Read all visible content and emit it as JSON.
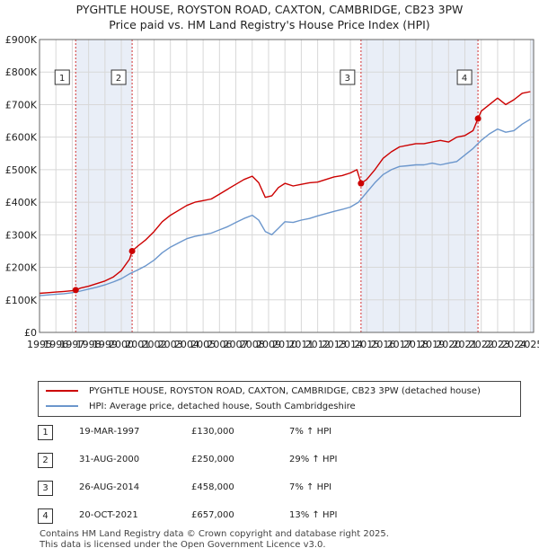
{
  "title_line1": "PYGHTLE HOUSE, ROYSTON ROAD, CAXTON, CAMBRIDGE, CB23 3PW",
  "title_line2": "Price paid vs. HM Land Registry's House Price Index (HPI)",
  "colors": {
    "property": "#cc0000",
    "hpi": "#6b96cc",
    "marker_line": "#cc0000",
    "shade": "#e9eef7"
  },
  "chart_data": {
    "type": "line",
    "xlim": [
      1995,
      2025.2
    ],
    "ylim": [
      0,
      900000
    ],
    "y_ticks": [
      {
        "value": 0,
        "label": "£0"
      },
      {
        "value": 100000,
        "label": "£100K"
      },
      {
        "value": 200000,
        "label": "£200K"
      },
      {
        "value": 300000,
        "label": "£300K"
      },
      {
        "value": 400000,
        "label": "£400K"
      },
      {
        "value": 500000,
        "label": "£500K"
      },
      {
        "value": 600000,
        "label": "£600K"
      },
      {
        "value": 700000,
        "label": "£700K"
      },
      {
        "value": 800000,
        "label": "£800K"
      },
      {
        "value": 900000,
        "label": "£900K"
      }
    ],
    "x_ticks": [
      "1995",
      "1996",
      "1997",
      "1998",
      "1999",
      "2000",
      "2001",
      "2002",
      "2003",
      "2004",
      "2005",
      "2006",
      "2007",
      "2008",
      "2009",
      "2010",
      "2011",
      "2012",
      "2013",
      "2014",
      "2015",
      "2016",
      "2017",
      "2018",
      "2019",
      "2020",
      "2021",
      "2022",
      "2023",
      "2024",
      "2025"
    ],
    "grid": true,
    "series": [
      {
        "name": "PYGHTLE HOUSE, ROYSTON ROAD, CAXTON, CAMBRIDGE, CB23 3PW (detached house)",
        "x": [
          1995,
          1995.5,
          1996,
          1996.5,
          1997,
          1997.21,
          1997.5,
          1998,
          1998.5,
          1999,
          1999.5,
          2000,
          2000.5,
          2000.66,
          2001,
          2001.5,
          2002,
          2002.5,
          2003,
          2003.5,
          2004,
          2004.5,
          2005,
          2005.5,
          2006,
          2006.5,
          2007,
          2007.5,
          2008,
          2008.4,
          2008.8,
          2009.2,
          2009.6,
          2010,
          2010.5,
          2011,
          2011.5,
          2012,
          2012.5,
          2013,
          2013.5,
          2014,
          2014.4,
          2014.66,
          2015,
          2015.5,
          2016,
          2016.5,
          2017,
          2017.5,
          2018,
          2018.5,
          2019,
          2019.5,
          2020,
          2020.5,
          2021,
          2021.5,
          2021.8,
          2022,
          2022.5,
          2023,
          2023.5,
          2024,
          2024.5,
          2025
        ],
        "y": [
          120000,
          122000,
          124000,
          126000,
          128000,
          130000,
          136000,
          142000,
          150000,
          158000,
          170000,
          190000,
          225000,
          250000,
          265000,
          285000,
          310000,
          340000,
          360000,
          375000,
          390000,
          400000,
          405000,
          410000,
          425000,
          440000,
          455000,
          470000,
          480000,
          460000,
          415000,
          420000,
          445000,
          458000,
          450000,
          455000,
          460000,
          462000,
          470000,
          478000,
          482000,
          490000,
          500000,
          458000,
          470000,
          500000,
          535000,
          555000,
          570000,
          575000,
          580000,
          580000,
          585000,
          590000,
          585000,
          600000,
          605000,
          620000,
          657000,
          680000,
          700000,
          720000,
          700000,
          715000,
          735000,
          740000
        ]
      },
      {
        "name": "HPI: Average price, detached house, South Cambridgeshire",
        "x": [
          1995,
          1995.5,
          1996,
          1996.5,
          1997,
          1997.5,
          1998,
          1998.5,
          1999,
          1999.5,
          2000,
          2000.5,
          2001,
          2001.5,
          2002,
          2002.5,
          2003,
          2003.5,
          2004,
          2004.5,
          2005,
          2005.5,
          2006,
          2006.5,
          2007,
          2007.5,
          2008,
          2008.4,
          2008.8,
          2009.2,
          2009.6,
          2010,
          2010.5,
          2011,
          2011.5,
          2012,
          2012.5,
          2013,
          2013.5,
          2014,
          2014.5,
          2015,
          2015.5,
          2016,
          2016.5,
          2017,
          2017.5,
          2018,
          2018.5,
          2019,
          2019.5,
          2020,
          2020.5,
          2021,
          2021.5,
          2022,
          2022.5,
          2023,
          2023.5,
          2024,
          2024.5,
          2025
        ],
        "y": [
          113000,
          115000,
          117000,
          119000,
          122000,
          127000,
          133000,
          139000,
          146000,
          155000,
          165000,
          180000,
          192000,
          205000,
          222000,
          245000,
          262000,
          275000,
          288000,
          295000,
          300000,
          305000,
          315000,
          325000,
          338000,
          350000,
          360000,
          345000,
          310000,
          300000,
          320000,
          340000,
          338000,
          345000,
          350000,
          358000,
          365000,
          372000,
          378000,
          385000,
          400000,
          430000,
          460000,
          485000,
          500000,
          510000,
          512000,
          515000,
          515000,
          520000,
          515000,
          520000,
          525000,
          545000,
          565000,
          590000,
          610000,
          625000,
          615000,
          620000,
          640000,
          655000
        ]
      }
    ],
    "sale_markers": [
      {
        "label": "1",
        "x": 1997.21,
        "y": 130000
      },
      {
        "label": "2",
        "x": 2000.66,
        "y": 250000
      },
      {
        "label": "3",
        "x": 2014.65,
        "y": 458000
      },
      {
        "label": "4",
        "x": 2021.8,
        "y": 657000
      }
    ],
    "shaded_ranges": [
      [
        1997.21,
        2000.66
      ],
      [
        2014.65,
        2021.8
      ],
      [
        2025.0,
        2025.2
      ]
    ]
  },
  "legend": {
    "property": "PYGHTLE HOUSE, ROYSTON ROAD, CAXTON, CAMBRIDGE, CB23 3PW (detached house)",
    "hpi": "HPI: Average price, detached house, South Cambridgeshire"
  },
  "sales": [
    {
      "num": "1",
      "date": "19-MAR-1997",
      "price": "£130,000",
      "hpi": "7% ↑ HPI"
    },
    {
      "num": "2",
      "date": "31-AUG-2000",
      "price": "£250,000",
      "hpi": "29% ↑ HPI"
    },
    {
      "num": "3",
      "date": "26-AUG-2014",
      "price": "£458,000",
      "hpi": "7% ↑ HPI"
    },
    {
      "num": "4",
      "date": "20-OCT-2021",
      "price": "£657,000",
      "hpi": "13% ↑ HPI"
    }
  ],
  "footer_line1": "Contains HM Land Registry data © Crown copyright and database right 2025.",
  "footer_line2": "This data is licensed under the Open Government Licence v3.0."
}
